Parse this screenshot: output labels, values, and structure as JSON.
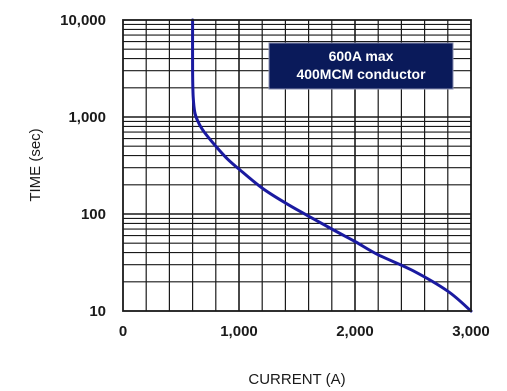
{
  "chart_data": {
    "type": "line",
    "title": "",
    "xlabel": "CURRENT (A)",
    "ylabel": "TIME (sec)",
    "x_scale": "linear",
    "y_scale": "log",
    "xlim": [
      0,
      3000
    ],
    "ylim": [
      10,
      10000
    ],
    "x_ticks": [
      0,
      1000,
      2000,
      3000
    ],
    "x_tick_labels": [
      "0",
      "1,000",
      "2,000",
      "3,000"
    ],
    "y_ticks": [
      10,
      100,
      1000,
      10000
    ],
    "y_tick_labels": [
      "10",
      "100",
      "1,000",
      "10,000"
    ],
    "grid": true,
    "legend_position": "top-right",
    "annotation": {
      "lines": [
        "600A max",
        "400MCM conductor"
      ],
      "background": "#0a1a5a",
      "text_color": "#ffffff"
    },
    "series": [
      {
        "color": "#1a1aa0",
        "x": [
          600,
          600,
          605,
          620,
          650,
          700,
          800,
          900,
          1000,
          1200,
          1400,
          1600,
          1800,
          2000,
          2200,
          2500,
          2800,
          3000
        ],
        "y": [
          10000,
          3000,
          1600,
          1100,
          880,
          700,
          500,
          370,
          290,
          185,
          130,
          95,
          70,
          52,
          38,
          26,
          16,
          10
        ]
      }
    ]
  }
}
